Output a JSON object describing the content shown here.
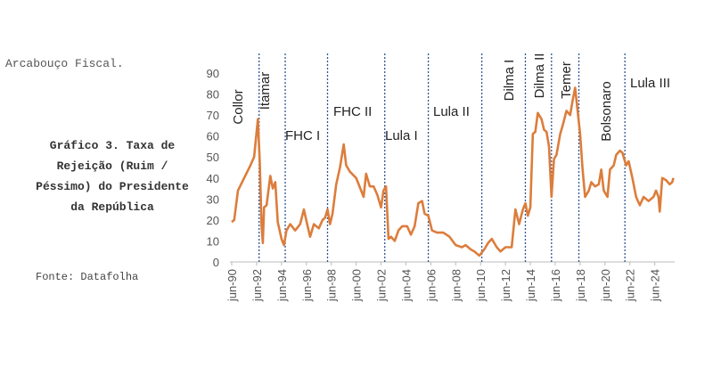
{
  "header": "Arcabouço Fiscal.",
  "source": "Fonte: Datafolha",
  "chart_data": {
    "type": "line",
    "title": "Gráfico 3. Taxa de Rejeição (Ruim / Péssimo) do Presidente da República",
    "x": [
      1990.5,
      1990.7,
      1991.0,
      1991.5,
      1992.0,
      1992.3,
      1992.6,
      1992.75,
      1992.9,
      1993.0,
      1993.1,
      1993.3,
      1993.6,
      1993.8,
      1994.0,
      1994.2,
      1994.5,
      1994.7,
      1994.9,
      1995.2,
      1995.6,
      1996.0,
      1996.3,
      1996.6,
      1996.8,
      1997.1,
      1997.5,
      1997.8,
      1998.0,
      1998.2,
      1998.4,
      1998.6,
      1998.9,
      1999.2,
      1999.5,
      1999.7,
      2000.0,
      2000.5,
      2000.9,
      2001.1,
      2001.3,
      2001.6,
      2001.9,
      2002.2,
      2002.5,
      2002.7,
      2002.9,
      2003.1,
      2003.3,
      2003.6,
      2003.9,
      2004.2,
      2004.6,
      2004.9,
      2005.2,
      2005.5,
      2005.8,
      2006.0,
      2006.3,
      2006.6,
      2007.0,
      2007.5,
      2008.0,
      2008.5,
      2009.0,
      2009.3,
      2009.7,
      2010.0,
      2010.4,
      2010.8,
      2011.1,
      2011.4,
      2011.8,
      2012.1,
      2012.5,
      2013.0,
      2013.3,
      2013.6,
      2013.9,
      2014.1,
      2014.3,
      2014.5,
      2014.7,
      2014.9,
      2015.1,
      2015.4,
      2015.6,
      2015.8,
      2016.0,
      2016.2,
      2016.4,
      2016.6,
      2016.9,
      2017.1,
      2017.4,
      2017.7,
      2017.9,
      2018.1,
      2018.3,
      2018.5,
      2018.7,
      2018.9,
      2019.2,
      2019.4,
      2019.7,
      2020.0,
      2020.2,
      2020.4,
      2020.7,
      2020.9,
      2021.2,
      2021.4,
      2021.7,
      2021.9,
      2022.2,
      2022.4,
      2022.7,
      2023.0,
      2023.3,
      2023.6,
      2024.0,
      2024.4,
      2024.6,
      2024.8,
      2024.9,
      2025.1,
      2025.4,
      2025.7,
      2025.9,
      2026.0
    ],
    "series": [
      {
        "color": "#dc7d3c",
        "values": [
          19,
          20,
          34,
          40,
          46,
          50,
          68,
          48,
          17,
          9,
          26,
          27,
          41,
          35,
          38,
          19,
          11,
          8,
          15,
          18,
          15,
          18,
          25,
          17,
          12,
          18,
          16,
          20,
          21,
          25,
          18,
          23,
          37,
          45,
          56,
          46,
          43,
          40,
          34,
          31,
          42,
          36,
          36,
          32,
          26,
          34,
          36,
          11,
          12,
          10,
          15,
          17,
          17,
          13,
          17,
          28,
          29,
          23,
          22,
          15,
          14,
          14,
          12,
          8,
          7,
          8,
          6,
          5,
          3,
          6,
          9,
          11,
          7,
          5,
          7,
          7,
          25,
          18,
          25,
          28,
          22,
          26,
          61,
          62,
          71,
          68,
          63,
          62,
          55,
          31,
          49,
          51,
          61,
          65,
          72,
          70,
          77,
          83,
          72,
          61,
          44,
          31,
          34,
          38,
          36,
          37,
          44,
          34,
          31,
          44,
          46,
          51,
          53,
          52,
          46,
          48,
          40,
          31,
          27,
          31,
          29,
          31,
          34,
          31,
          24,
          40,
          39,
          37,
          38,
          40
        ]
      }
    ],
    "xlim": [
      1990.5,
      2026.1
    ],
    "ylim": [
      0,
      90
    ],
    "yticks": [
      0,
      10,
      20,
      30,
      40,
      50,
      60,
      70,
      80,
      90
    ],
    "xticks": [
      {
        "value": 1990.5,
        "label": "jun-90"
      },
      {
        "value": 1992.5,
        "label": "jun-92"
      },
      {
        "value": 1994.5,
        "label": "jun-94"
      },
      {
        "value": 1996.5,
        "label": "jun-96"
      },
      {
        "value": 1998.5,
        "label": "jun-98"
      },
      {
        "value": 2000.5,
        "label": "jun-00"
      },
      {
        "value": 2002.5,
        "label": "jun-02"
      },
      {
        "value": 2004.5,
        "label": "jun-04"
      },
      {
        "value": 2006.5,
        "label": "jun-06"
      },
      {
        "value": 2008.5,
        "label": "jun-08"
      },
      {
        "value": 2010.5,
        "label": "jun-10"
      },
      {
        "value": 2012.5,
        "label": "jun-12"
      },
      {
        "value": 2014.5,
        "label": "jun-14"
      },
      {
        "value": 2016.5,
        "label": "jun-16"
      },
      {
        "value": 2018.5,
        "label": "jun-18"
      },
      {
        "value": 2020.5,
        "label": "jun-20"
      },
      {
        "value": 2022.5,
        "label": "jun-22"
      },
      {
        "value": 2024.5,
        "label": "jun-24"
      }
    ],
    "periods": [
      "Collor",
      "Itamar",
      "FHC I",
      "FHC II",
      "Lula I",
      "Lula II",
      "Dilma I",
      "Dilma II",
      "Temer",
      "Bolsonaro",
      "Lula III"
    ],
    "boundaries": [
      1992.7,
      1994.8,
      1998.2,
      2002.8,
      2006.3,
      2010.6,
      2014.1,
      2016.2,
      2018.4,
      2022.1
    ],
    "boundary_color": "#2f5597"
  }
}
